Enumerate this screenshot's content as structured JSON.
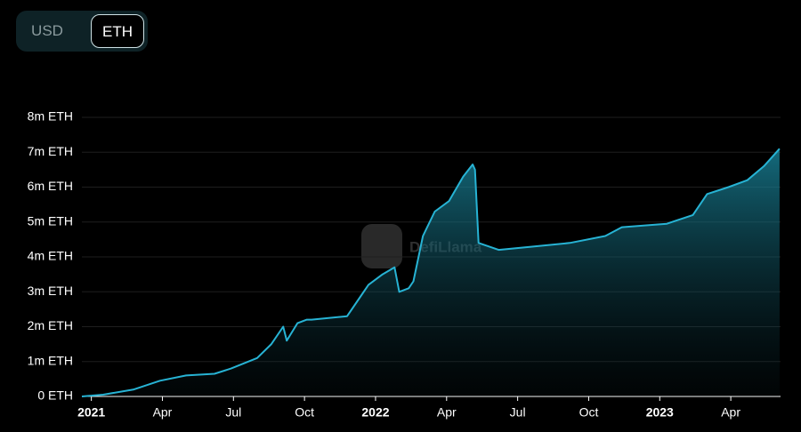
{
  "toggle": {
    "options": [
      "USD",
      "ETH"
    ]
  },
  "watermark": "DefiLlama",
  "chart_data": {
    "type": "area",
    "color": "#27b3d4",
    "grid": true,
    "x": [
      -0.4,
      0.5,
      1.8,
      2.9,
      4.0,
      5.2,
      5.9,
      7.0,
      7.6,
      8.1,
      8.25,
      8.7,
      9.1,
      9.3,
      10.8,
      11.2,
      11.7,
      12.3,
      12.8,
      13.0,
      13.4,
      13.6,
      14.0,
      14.5,
      15.1,
      15.7,
      16.1,
      16.2,
      16.35,
      17.2,
      18.7,
      20.2,
      21.7,
      22.4,
      24.3,
      25.4,
      26.0,
      26.9,
      27.7,
      28.4,
      29.06
    ],
    "values": [
      0,
      50000,
      200000,
      450000,
      600000,
      650000,
      800000,
      1100000,
      1500000,
      2000000,
      1600000,
      2100000,
      2200000,
      2200000,
      2300000,
      2700000,
      3200000,
      3500000,
      3700000,
      3000000,
      3100000,
      3300000,
      4600000,
      5300000,
      5600000,
      6300000,
      6650000,
      6500000,
      4400000,
      4200000,
      4300000,
      4400000,
      4600000,
      4850000,
      4950000,
      5200000,
      5800000,
      6000000,
      6200000,
      6600000,
      7100000
    ],
    "xlim": [
      -0.4,
      29.1
    ],
    "xticks": [
      {
        "value": 0,
        "label": "2021"
      },
      {
        "value": 3,
        "label": "Apr"
      },
      {
        "value": 6,
        "label": "Jul"
      },
      {
        "value": 9,
        "label": "Oct"
      },
      {
        "value": 12,
        "label": "2022"
      },
      {
        "value": 15,
        "label": "Apr"
      },
      {
        "value": 18,
        "label": "Jul"
      },
      {
        "value": 21,
        "label": "Oct"
      },
      {
        "value": 24,
        "label": "2023"
      },
      {
        "value": 27,
        "label": "Apr"
      }
    ],
    "ylim": [
      0,
      8000000
    ],
    "yticks": [
      {
        "value": 0,
        "label": "0 ETH"
      },
      {
        "value": 1000000,
        "label": "1m ETH"
      },
      {
        "value": 2000000,
        "label": "2m ETH"
      },
      {
        "value": 3000000,
        "label": "3m ETH"
      },
      {
        "value": 4000000,
        "label": "4m ETH"
      },
      {
        "value": 5000000,
        "label": "5m ETH"
      },
      {
        "value": 6000000,
        "label": "6m ETH"
      },
      {
        "value": 7000000,
        "label": "7m ETH"
      },
      {
        "value": 8000000,
        "label": "8m ETH"
      }
    ]
  }
}
